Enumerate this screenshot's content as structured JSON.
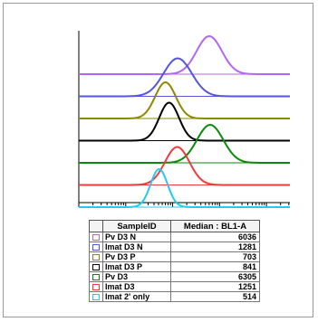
{
  "chart_data": {
    "type": "histogram-overlay",
    "columns": [
      "SampleID",
      "Median : BL1-A"
    ],
    "series": [
      {
        "name": "Pv D3 N",
        "median": 6036,
        "color": "#b366f2"
      },
      {
        "name": "Imat D3 N",
        "median": 1281,
        "color": "#5555e0"
      },
      {
        "name": "Pv D3 P",
        "median": 703,
        "color": "#8c8a00"
      },
      {
        "name": "Imat D3 P",
        "median": 841,
        "color": "#000000"
      },
      {
        "name": "Pv D3",
        "median": 6305,
        "color": "#0a8a0a"
      },
      {
        "name": "Imat D3",
        "median": 1251,
        "color": "#ee3b3b"
      },
      {
        "name": "Imat 2' only",
        "median": 514,
        "color": "#22ccee"
      }
    ],
    "xscale": "log",
    "legend_position": "bottom"
  }
}
